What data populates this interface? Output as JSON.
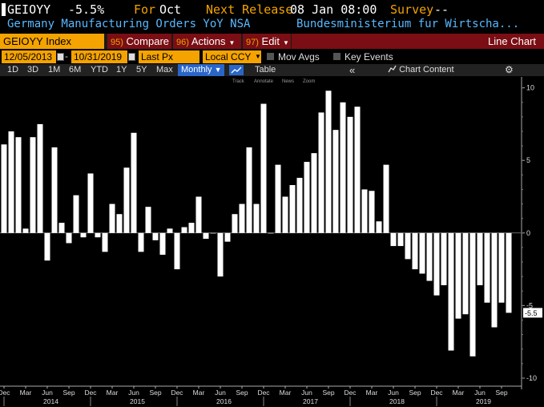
{
  "header": {
    "ticker": "GEIOYY",
    "value": "-5.5%",
    "for_label": "For",
    "period": "Oct",
    "next_release_label": "Next Release",
    "next_release": "08 Jan 08:00",
    "survey_label": "Survey",
    "survey": "--"
  },
  "subheader": {
    "description": "Germany Manufacturing Orders YoY NSA",
    "source": "Bundesministerium fur Wirtscha..."
  },
  "toolbar": {
    "security": "GEIOYY Index",
    "compare_num": "95)",
    "compare": "Compare",
    "actions_num": "96)",
    "actions": "Actions",
    "edit_num": "97)",
    "edit": "Edit",
    "chart_type": "Line Chart"
  },
  "settings": {
    "start_date": "12/05/2013",
    "end_date": "10/31/2019",
    "field": "Last Px",
    "currency": "Local CCY",
    "mov_avgs": "Mov Avgs",
    "key_events": "Key Events"
  },
  "range_bar": {
    "ranges": [
      "1D",
      "3D",
      "1M",
      "6M",
      "YTD",
      "1Y",
      "5Y",
      "Max"
    ],
    "frequency": "Monthly",
    "table": "Table",
    "collapse": "«",
    "chart_content": "Chart Content",
    "settings_icon": "gear-icon"
  },
  "chart_tools": [
    "Track",
    "Annotate",
    "News",
    "Zoom"
  ],
  "colors": {
    "background": "#000000",
    "bars": "#ffffff",
    "accent_orange": "#f5a300",
    "menu_red": "#7a0e14",
    "blue_text": "#59b8ff",
    "active_blue": "#2a66c8"
  },
  "chart_data": {
    "type": "bar",
    "title": "",
    "ylim": [
      -10.5,
      10.2
    ],
    "y_ticks": [
      10,
      5,
      0,
      -5,
      -10
    ],
    "last_value_label": "-5.5",
    "month_tick_labels": [
      "Dec",
      "Mar",
      "Jun",
      "Sep",
      "Dec",
      "Mar",
      "Jun",
      "Sep",
      "Dec",
      "Mar",
      "Jun",
      "Sep",
      "Dec",
      "Mar",
      "Jun",
      "Sep",
      "Dec",
      "Mar",
      "Jun",
      "Sep",
      "Dec",
      "Mar",
      "Jun",
      "Sep"
    ],
    "year_labels": [
      "2014",
      "2015",
      "2016",
      "2017",
      "2018",
      "2019"
    ],
    "values": [
      6.1,
      7.0,
      6.6,
      0.3,
      6.6,
      7.5,
      -1.9,
      5.9,
      0.7,
      -0.7,
      2.6,
      -0.3,
      4.1,
      -0.3,
      -1.3,
      2.0,
      1.3,
      4.5,
      6.9,
      -1.3,
      1.8,
      -0.5,
      -1.5,
      0.3,
      -2.5,
      0.4,
      0.7,
      2.5,
      -0.4,
      0.0,
      -3.0,
      -0.6,
      1.3,
      2.0,
      5.9,
      2.0,
      8.9,
      0.0,
      4.7,
      2.5,
      3.3,
      3.8,
      4.9,
      5.5,
      8.3,
      9.8,
      7.1,
      9.0,
      8.0,
      8.7,
      3.0,
      2.9,
      0.8,
      4.7,
      -0.9,
      -0.9,
      -1.8,
      -2.5,
      -2.8,
      -3.3,
      -4.3,
      -3.6,
      -8.1,
      -5.9,
      -5.6,
      -8.5,
      -3.6,
      -4.8,
      -6.5,
      -4.8,
      -5.5
    ]
  }
}
